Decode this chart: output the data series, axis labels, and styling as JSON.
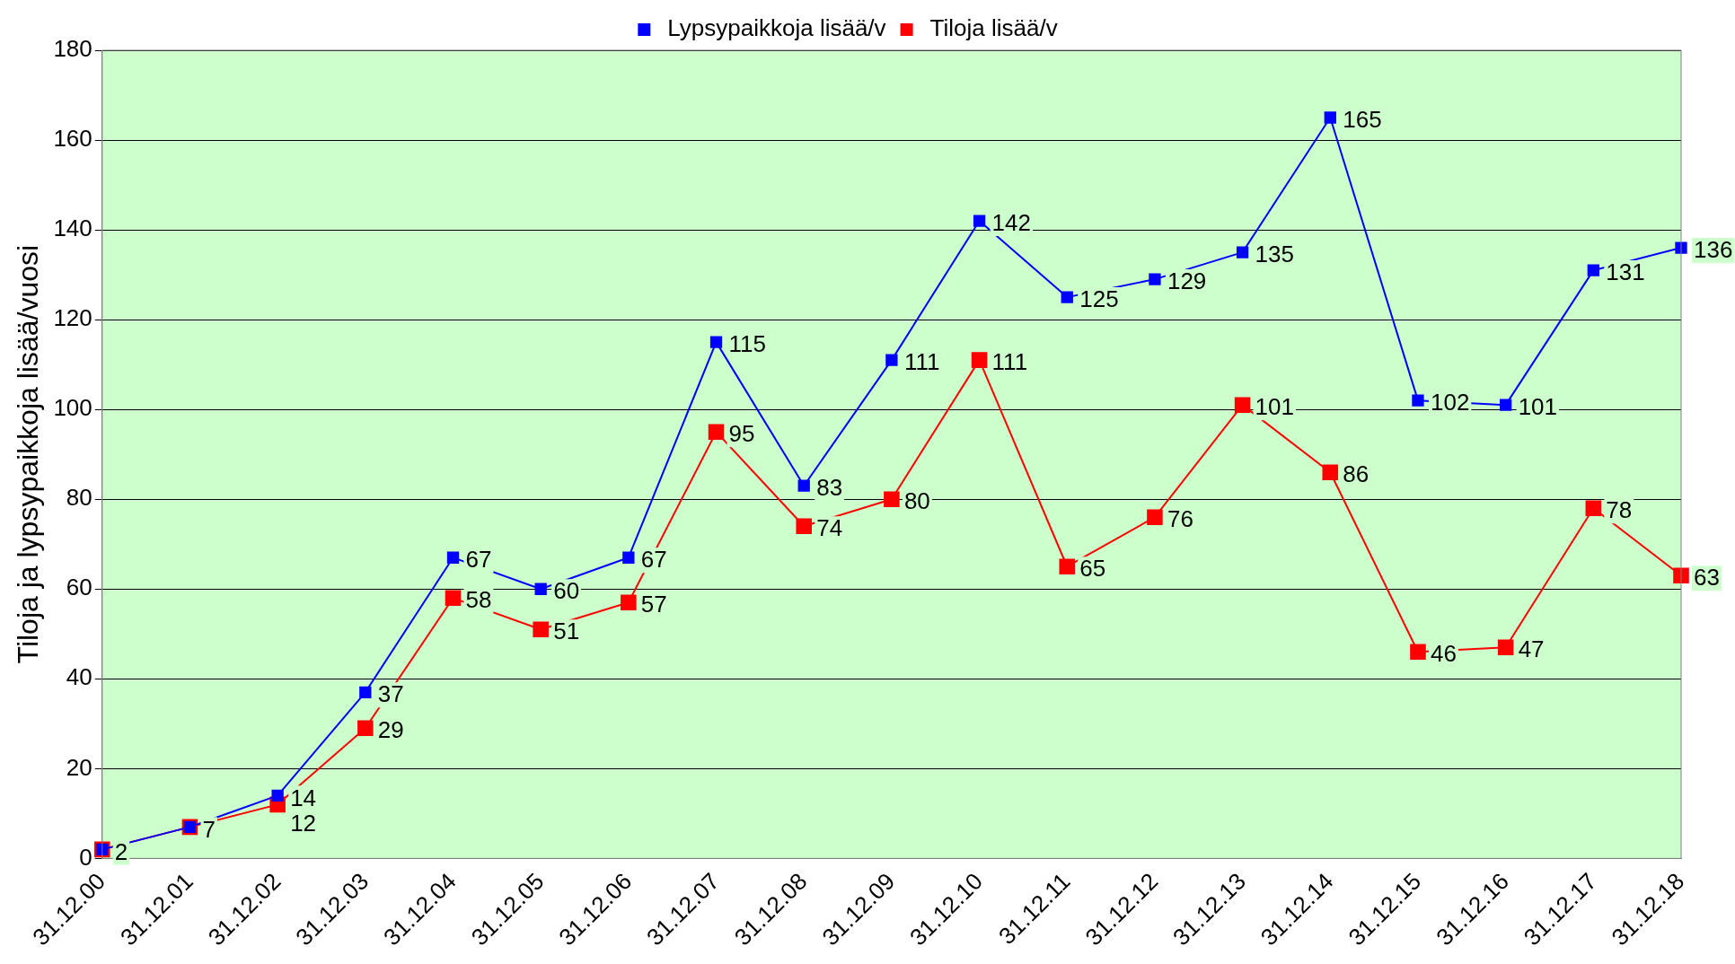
{
  "chart_data": {
    "type": "line",
    "ylabel": "Tiloja ja lypsypaikkoja lisää/vuosi",
    "categories": [
      "31.12.00",
      "31.12.01",
      "31.12.02",
      "31.12.03",
      "31.12.04",
      "31.12.05",
      "31.12.06",
      "31.12.07",
      "31.12.08",
      "31.12.09",
      "31.12.10",
      "31.12.11",
      "31.12.12",
      "31.12.13",
      "31.12.14",
      "31.12.15",
      "31.12.16",
      "31.12.17",
      "31.12.18"
    ],
    "series": [
      {
        "name": "Tiloja lisää/v",
        "color": "#ff0000",
        "values": [
          2,
          7,
          12,
          29,
          58,
          51,
          57,
          95,
          74,
          80,
          111,
          65,
          76,
          101,
          86,
          46,
          47,
          78,
          63
        ],
        "value_labels": [
          "2",
          "7",
          "12",
          "29",
          "58",
          "51",
          "57",
          "95",
          "74",
          "80",
          "111",
          "65",
          "76",
          "101",
          "86",
          "46",
          "47",
          "78",
          "63"
        ]
      },
      {
        "name": "Lypsypaikkoja lisää/v",
        "color": "#0000ff",
        "values": [
          2,
          7,
          14,
          37,
          67,
          60,
          67,
          115,
          83,
          111,
          142,
          125,
          129,
          135,
          165,
          102,
          101,
          131,
          136
        ],
        "value_labels": [
          null,
          null,
          "14",
          "37",
          "67",
          "60",
          "67",
          "115",
          "83",
          "111",
          "142",
          "125",
          "129",
          "135",
          "165",
          "102",
          "101",
          "131",
          "136"
        ]
      }
    ],
    "ylim": [
      0,
      180
    ],
    "yticks": [
      0,
      20,
      40,
      60,
      80,
      100,
      120,
      140,
      160,
      180
    ],
    "grid": "y",
    "legend": "top",
    "marker": "square",
    "line_style": "solid"
  }
}
